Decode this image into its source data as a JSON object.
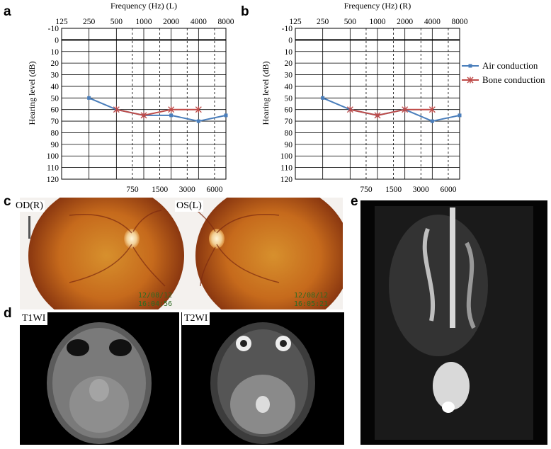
{
  "panels": {
    "a": "a",
    "b": "b",
    "c": "c",
    "d": "d",
    "e": "e"
  },
  "chart_data": [
    {
      "type": "line",
      "title": "Frequency (Hz) (L)",
      "ylabel": "Hearing level (dB)",
      "x_top_ticks": [
        "125",
        "250",
        "500",
        "1000",
        "2000",
        "4000",
        "8000"
      ],
      "x_bottom_ticks": [
        "750",
        "1500",
        "3000",
        "6000"
      ],
      "y_ticks": [
        "-10",
        "0",
        "10",
        "20",
        "30",
        "40",
        "50",
        "60",
        "70",
        "80",
        "90",
        "100",
        "110",
        "120"
      ],
      "ylim": [
        -10,
        120
      ],
      "y_inverted": true,
      "series": [
        {
          "name": "Air conduction",
          "color": "#4a7ebb",
          "marker": "square",
          "points": [
            [
              250,
              50
            ],
            [
              500,
              60
            ],
            [
              1000,
              65
            ],
            [
              2000,
              65
            ],
            [
              4000,
              70
            ],
            [
              8000,
              65
            ]
          ]
        },
        {
          "name": "Bone conduction",
          "color": "#be4b48",
          "marker": "star",
          "points": [
            [
              500,
              60
            ],
            [
              1000,
              65
            ],
            [
              2000,
              60
            ],
            [
              4000,
              60
            ]
          ]
        }
      ]
    },
    {
      "type": "line",
      "title": "Frequency (Hz) (R)",
      "ylabel": "Hearing level (dB)",
      "x_top_ticks": [
        "125",
        "250",
        "500",
        "1000",
        "2000",
        "4000",
        "8000"
      ],
      "x_bottom_ticks": [
        "750",
        "1500",
        "3000",
        "6000"
      ],
      "y_ticks": [
        "-10",
        "0",
        "10",
        "20",
        "30",
        "40",
        "50",
        "60",
        "70",
        "80",
        "90",
        "100",
        "110",
        "120"
      ],
      "ylim": [
        -10,
        120
      ],
      "y_inverted": true,
      "legend_position": "right",
      "series": [
        {
          "name": "Air conduction",
          "color": "#4a7ebb",
          "marker": "square",
          "points": [
            [
              250,
              50
            ],
            [
              500,
              60
            ],
            [
              1000,
              65
            ],
            [
              2000,
              60
            ],
            [
              4000,
              70
            ],
            [
              8000,
              65
            ]
          ]
        },
        {
          "name": "Bone conduction",
          "color": "#be4b48",
          "marker": "star",
          "points": [
            [
              500,
              60
            ],
            [
              1000,
              65
            ],
            [
              2000,
              60
            ],
            [
              4000,
              60
            ]
          ]
        }
      ]
    }
  ],
  "fundus": {
    "left_label": "OD(R)",
    "right_label": "OS(L)",
    "left_stamp": [
      "12/08/12",
      "16:04:56"
    ],
    "right_stamp": [
      "12/08/12",
      "16:05:21"
    ]
  },
  "mri": {
    "t1_label": "T1WI",
    "t2_label": "T2WI"
  },
  "colors": {
    "air": "#4a7ebb",
    "bone": "#be4b48"
  }
}
